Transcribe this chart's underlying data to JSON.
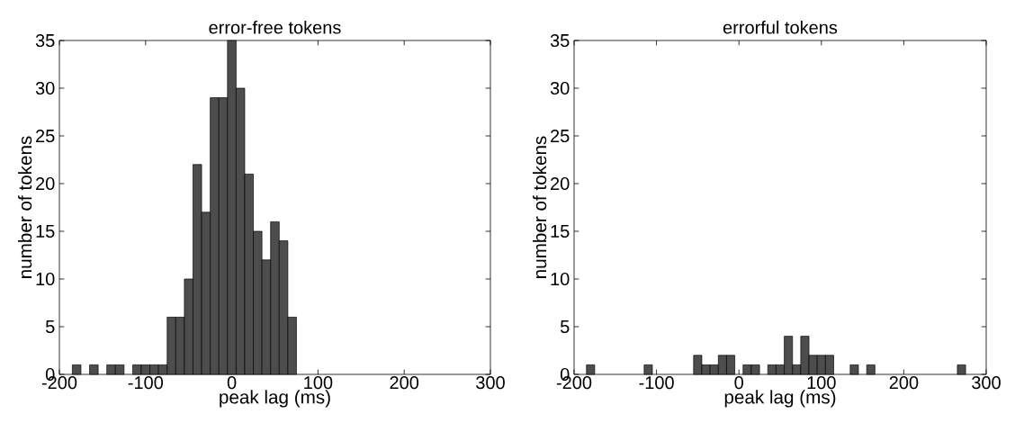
{
  "chart_data": [
    {
      "type": "histogram",
      "title": "error-free tokens",
      "xlabel": "peak lag (ms)",
      "ylabel": "number of tokens",
      "color": "#4d4d4d",
      "bins": [
        -185,
        -175,
        -165,
        -155,
        -145,
        -135,
        -125,
        -115,
        -105,
        -95,
        -85,
        -75,
        -65,
        -55,
        -45,
        -35,
        -25,
        -15,
        -5,
        5,
        15,
        25,
        35,
        45,
        55,
        65,
        75
      ],
      "values": [
        1,
        0,
        1,
        0,
        1,
        1,
        0,
        1,
        1,
        1,
        1,
        6,
        6,
        10,
        22,
        17,
        29,
        29,
        35,
        30,
        21,
        15,
        12,
        16,
        14,
        6
      ],
      "xlim": [
        -200,
        300
      ],
      "ylim": [
        0,
        35
      ],
      "xticks": [
        -200,
        -100,
        0,
        100,
        200,
        300
      ],
      "yticks": [
        0,
        5,
        10,
        15,
        20,
        25,
        30,
        35
      ]
    },
    {
      "type": "histogram",
      "title": "errorful tokens",
      "xlabel": "peak lag (ms)",
      "ylabel": "number of tokens",
      "color": "#4d4d4d",
      "bins": [
        -185,
        -175,
        -165,
        -155,
        -145,
        -135,
        -125,
        -115,
        -105,
        -95,
        -85,
        -75,
        -65,
        -55,
        -45,
        -35,
        -25,
        -15,
        -5,
        5,
        15,
        25,
        35,
        45,
        55,
        65,
        75,
        85,
        95,
        105,
        115,
        125,
        135,
        145,
        155,
        165,
        175,
        185,
        195,
        205,
        215,
        225,
        235,
        245,
        255,
        265,
        275
      ],
      "values": [
        1,
        0,
        0,
        0,
        0,
        0,
        0,
        1,
        0,
        0,
        0,
        0,
        0,
        2,
        1,
        1,
        2,
        2,
        0,
        1,
        1,
        0,
        1,
        1,
        4,
        1,
        4,
        2,
        2,
        2,
        0,
        0,
        1,
        0,
        1,
        0,
        0,
        0,
        0,
        0,
        0,
        0,
        0,
        0,
        0,
        1
      ],
      "xlim": [
        -200,
        300
      ],
      "ylim": [
        0,
        35
      ],
      "xticks": [
        -200,
        -100,
        0,
        100,
        200,
        300
      ],
      "yticks": [
        0,
        5,
        10,
        15,
        20,
        25,
        30,
        35
      ]
    }
  ]
}
